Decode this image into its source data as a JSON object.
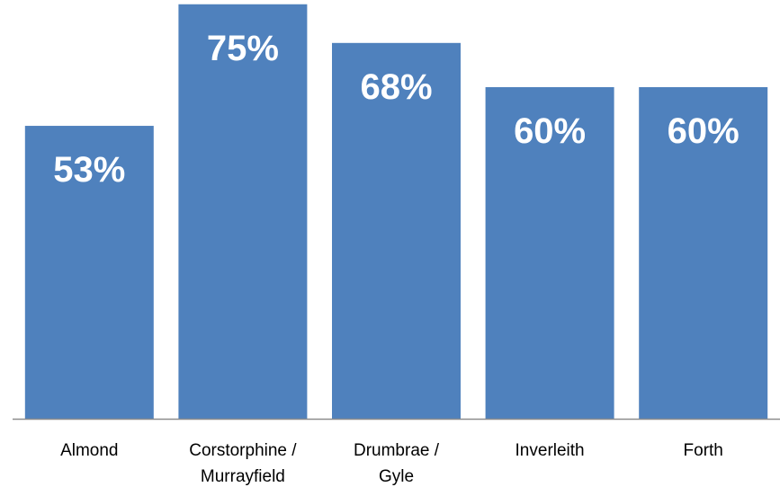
{
  "chart_data": {
    "type": "bar",
    "categories": [
      [
        "Almond"
      ],
      [
        "Corstorphine /",
        "Murrayfield"
      ],
      [
        "Drumbrae /",
        "Gyle"
      ],
      [
        "Inverleith"
      ],
      [
        "Forth"
      ]
    ],
    "values": [
      53,
      75,
      68,
      60,
      60
    ],
    "value_labels": [
      "53%",
      "75%",
      "68%",
      "60%",
      "60%"
    ],
    "unit": "%",
    "title": "",
    "xlabel": "",
    "ylabel": "",
    "ylim": [
      0,
      80
    ],
    "grid": false,
    "legend": "none",
    "colors": {
      "bar": "#4f81bd",
      "axis": "#8c8c8c",
      "label_text": "#ffffff"
    }
  }
}
